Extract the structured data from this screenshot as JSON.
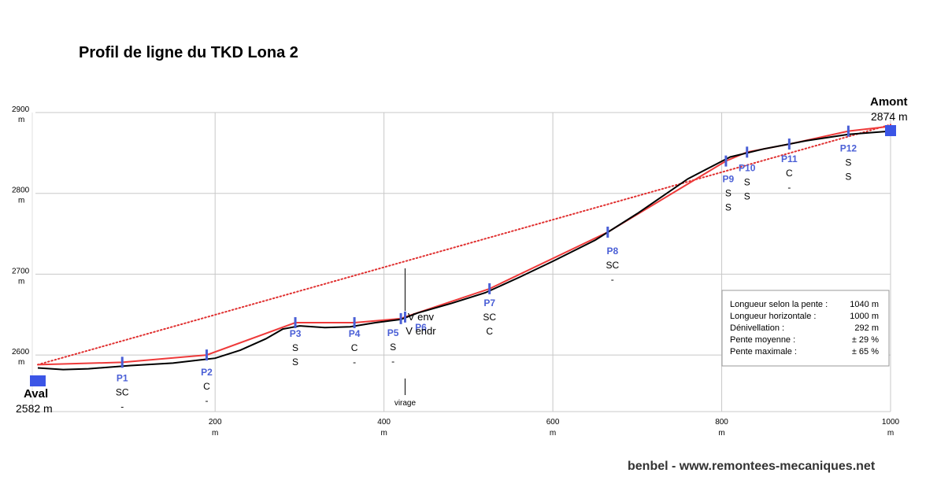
{
  "title": "Profil de ligne du TKD Lona 2",
  "credit": "benbel - www.remontees-mecaniques.net",
  "chart_data": {
    "type": "line",
    "xlabel": "",
    "ylabel": "",
    "x_unit": "m",
    "y_unit": "m",
    "xlim": [
      -10,
      1000
    ],
    "ylim": [
      2530,
      2900
    ],
    "x_ticks": [
      200,
      400,
      600,
      800,
      1000
    ],
    "y_ticks": [
      2600,
      2700,
      2800,
      2900
    ],
    "grid": true,
    "stations": {
      "bottom": {
        "name": "Aval",
        "altitude_label": "2582 m",
        "x": -10,
        "y": 2582
      },
      "top": {
        "name": "Amont",
        "altitude_label": "2874 m",
        "x": 1000,
        "y": 2874
      }
    },
    "series": [
      {
        "color": "#e03030",
        "style": "dotted",
        "x": [
          -10,
          1000
        ],
        "y": [
          2588,
          2885
        ]
      },
      {
        "color": "#ee3a3a",
        "style": "solid",
        "x": [
          -10,
          90,
          190,
          295,
          365,
          420,
          425,
          525,
          665,
          805,
          830,
          880,
          950,
          1000
        ],
        "y": [
          2588,
          2591,
          2600,
          2640,
          2640,
          2645,
          2647,
          2682,
          2752,
          2840,
          2851,
          2861,
          2877,
          2883
        ]
      },
      {
        "color": "#000000",
        "style": "solid",
        "x": [
          -10,
          20,
          50,
          100,
          150,
          200,
          230,
          260,
          280,
          300,
          330,
          360,
          390,
          420,
          440,
          480,
          520,
          560,
          600,
          650,
          700,
          760,
          810,
          850,
          900,
          950,
          1000
        ],
        "y": [
          2584,
          2582,
          2583,
          2587,
          2590,
          2596,
          2606,
          2620,
          2632,
          2636,
          2634,
          2635,
          2640,
          2644,
          2652,
          2664,
          2677,
          2696,
          2716,
          2742,
          2775,
          2818,
          2845,
          2855,
          2865,
          2873,
          2877
        ]
      }
    ],
    "pylons": [
      {
        "name": "P1",
        "x": 90,
        "y": 2591,
        "codes": [
          "SC",
          "-"
        ]
      },
      {
        "name": "P2",
        "x": 190,
        "y": 2600,
        "codes": [
          "C",
          "-"
        ]
      },
      {
        "name": "P3",
        "x": 295,
        "y": 2640,
        "codes": [
          "S",
          "S"
        ]
      },
      {
        "name": "P4",
        "x": 365,
        "y": 2640,
        "codes": [
          "C",
          "-"
        ]
      },
      {
        "name": "P5",
        "x": 420,
        "y": 2645,
        "codes": [
          "S",
          "-"
        ]
      },
      {
        "name": "P6",
        "x": 425,
        "y": 2647,
        "codes": [
          "V env",
          "V endr"
        ]
      },
      {
        "name": "P7",
        "x": 525,
        "y": 2682,
        "codes": [
          "SC",
          "C"
        ]
      },
      {
        "name": "P8",
        "x": 665,
        "y": 2752,
        "codes": [
          "SC",
          "-"
        ]
      },
      {
        "name": "P9",
        "x": 805,
        "y": 2840,
        "codes": [
          "S",
          "S"
        ]
      },
      {
        "name": "P10",
        "x": 830,
        "y": 2851,
        "codes": [
          "S",
          "S"
        ]
      },
      {
        "name": "P11",
        "x": 880,
        "y": 2861,
        "codes": [
          "C",
          "-"
        ]
      },
      {
        "name": "P12",
        "x": 950,
        "y": 2877,
        "codes": [
          "S",
          "S"
        ]
      }
    ],
    "annotation": {
      "text": "virage",
      "x": 425
    }
  },
  "info": [
    {
      "label": "Longueur selon la pente :",
      "value": "1040 m"
    },
    {
      "label": "Longueur horizontale :",
      "value": "1000 m"
    },
    {
      "label": "Dénivellation :",
      "value": "292 m"
    },
    {
      "label": "Pente moyenne :",
      "value": "±  29 %"
    },
    {
      "label": "Pente maximale  :",
      "value": "±  65 %"
    }
  ]
}
